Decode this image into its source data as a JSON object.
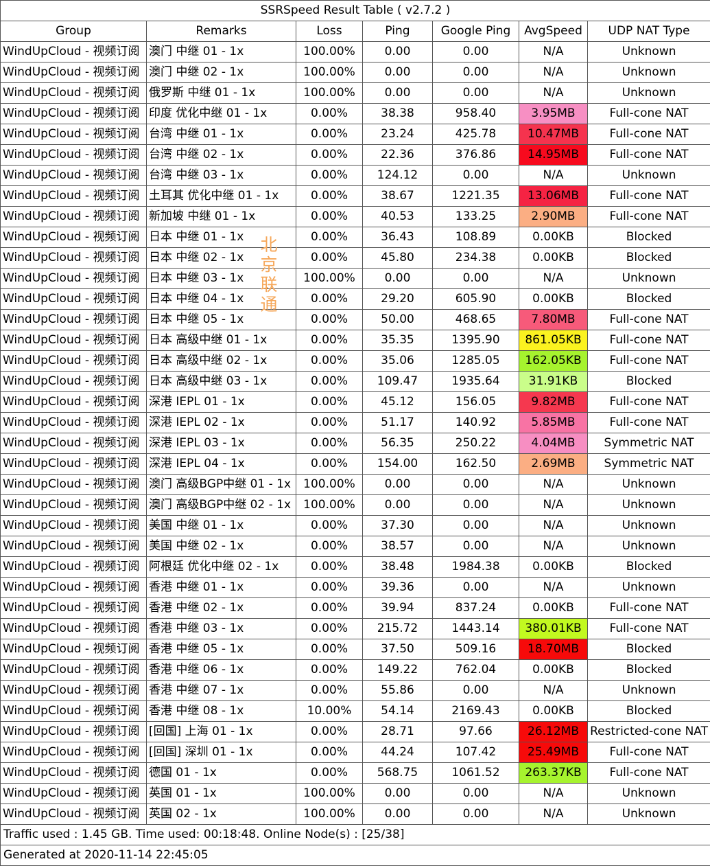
{
  "title": "SSRSpeed Result Table ( v2.7.2 )",
  "headers": [
    "Group",
    "Remarks",
    "Loss",
    "Ping",
    "Google Ping",
    "AvgSpeed",
    "UDP NAT Type"
  ],
  "rows": [
    {
      "group": "WindUpCloud - 视频订阅",
      "remarks": "澳门 中继 01 - 1x",
      "loss": "100.00%",
      "ping": "0.00",
      "gping": "0.00",
      "speed": "N/A",
      "color": "#ffffff",
      "nat": "Unknown"
    },
    {
      "group": "WindUpCloud - 视频订阅",
      "remarks": "澳门 中继 02 - 1x",
      "loss": "100.00%",
      "ping": "0.00",
      "gping": "0.00",
      "speed": "N/A",
      "color": "#ffffff",
      "nat": "Unknown"
    },
    {
      "group": "WindUpCloud - 视频订阅",
      "remarks": "俄罗斯 中继 01 - 1x",
      "loss": "100.00%",
      "ping": "0.00",
      "gping": "0.00",
      "speed": "N/A",
      "color": "#ffffff",
      "nat": "Unknown"
    },
    {
      "group": "WindUpCloud - 视频订阅",
      "remarks": "印度 优化中继 01 - 1x",
      "loss": "0.00%",
      "ping": "38.38",
      "gping": "958.40",
      "speed": "3.95MB",
      "color": "#f78fc3",
      "nat": "Full-cone NAT"
    },
    {
      "group": "WindUpCloud - 视频订阅",
      "remarks": "台湾 中继 01 - 1x",
      "loss": "0.00%",
      "ping": "23.24",
      "gping": "425.78",
      "speed": "10.47MB",
      "color": "#f5334e",
      "nat": "Full-cone NAT"
    },
    {
      "group": "WindUpCloud - 视频订阅",
      "remarks": "台湾 中继 02 - 1x",
      "loss": "0.00%",
      "ping": "22.36",
      "gping": "376.86",
      "speed": "14.95MB",
      "color": "#f70a1e",
      "nat": "Full-cone NAT"
    },
    {
      "group": "WindUpCloud - 视频订阅",
      "remarks": "台湾 中继 03 - 1x",
      "loss": "0.00%",
      "ping": "124.12",
      "gping": "0.00",
      "speed": "N/A",
      "color": "#ffffff",
      "nat": "Unknown"
    },
    {
      "group": "WindUpCloud - 视频订阅",
      "remarks": "土耳其 优化中继 01 - 1x",
      "loss": "0.00%",
      "ping": "38.67",
      "gping": "1221.35",
      "speed": "13.06MB",
      "color": "#f52343",
      "nat": "Full-cone NAT"
    },
    {
      "group": "WindUpCloud - 视频订阅",
      "remarks": "新加坡 中继 01 - 1x",
      "loss": "0.00%",
      "ping": "40.53",
      "gping": "133.25",
      "speed": "2.90MB",
      "color": "#fbae83",
      "nat": "Full-cone NAT"
    },
    {
      "group": "WindUpCloud - 视频订阅",
      "remarks": "日本 中继 01 - 1x",
      "loss": "0.00%",
      "ping": "36.43",
      "gping": "108.89",
      "speed": "0.00KB",
      "color": "#ffffff",
      "nat": "Blocked"
    },
    {
      "group": "WindUpCloud - 视频订阅",
      "remarks": "日本 中继 02 - 1x",
      "loss": "0.00%",
      "ping": "45.80",
      "gping": "234.38",
      "speed": "0.00KB",
      "color": "#ffffff",
      "nat": "Blocked"
    },
    {
      "group": "WindUpCloud - 视频订阅",
      "remarks": "日本 中继 03 - 1x",
      "loss": "100.00%",
      "ping": "0.00",
      "gping": "0.00",
      "speed": "N/A",
      "color": "#ffffff",
      "nat": "Unknown"
    },
    {
      "group": "WindUpCloud - 视频订阅",
      "remarks": "日本 中继 04 - 1x",
      "loss": "0.00%",
      "ping": "29.20",
      "gping": "605.90",
      "speed": "0.00KB",
      "color": "#ffffff",
      "nat": "Blocked"
    },
    {
      "group": "WindUpCloud - 视频订阅",
      "remarks": "日本 中继 05 - 1x",
      "loss": "0.00%",
      "ping": "50.00",
      "gping": "468.65",
      "speed": "7.80MB",
      "color": "#f75a7a",
      "nat": "Full-cone NAT"
    },
    {
      "group": "WindUpCloud - 视频订阅",
      "remarks": "日本 高级中继 01 - 1x",
      "loss": "0.00%",
      "ping": "35.35",
      "gping": "1395.90",
      "speed": "861.05KB",
      "color": "#fbf220",
      "nat": "Full-cone NAT"
    },
    {
      "group": "WindUpCloud - 视频订阅",
      "remarks": "日本 高级中继 02 - 1x",
      "loss": "0.00%",
      "ping": "35.06",
      "gping": "1285.05",
      "speed": "162.05KB",
      "color": "#a6f32e",
      "nat": "Full-cone NAT"
    },
    {
      "group": "WindUpCloud - 视频订阅",
      "remarks": "日本 高级中继 03 - 1x",
      "loss": "0.00%",
      "ping": "109.47",
      "gping": "1935.64",
      "speed": "31.91KB",
      "color": "#cafd8a",
      "nat": "Blocked"
    },
    {
      "group": "WindUpCloud - 视频订阅",
      "remarks": "深港 IEPL 01 - 1x",
      "loss": "0.00%",
      "ping": "45.12",
      "gping": "156.05",
      "speed": "9.82MB",
      "color": "#f5384f",
      "nat": "Full-cone NAT"
    },
    {
      "group": "WindUpCloud - 视频订阅",
      "remarks": "深港 IEPL 02 - 1x",
      "loss": "0.00%",
      "ping": "51.17",
      "gping": "140.92",
      "speed": "5.85MB",
      "color": "#f873a4",
      "nat": "Full-cone NAT"
    },
    {
      "group": "WindUpCloud - 视频订阅",
      "remarks": "深港 IEPL 03 - 1x",
      "loss": "0.00%",
      "ping": "56.35",
      "gping": "250.22",
      "speed": "4.04MB",
      "color": "#f78ec2",
      "nat": "Symmetric NAT"
    },
    {
      "group": "WindUpCloud - 视频订阅",
      "remarks": "深港 IEPL 04 - 1x",
      "loss": "0.00%",
      "ping": "154.00",
      "gping": "162.50",
      "speed": "2.69MB",
      "color": "#fbae83",
      "nat": "Symmetric NAT"
    },
    {
      "group": "WindUpCloud - 视频订阅",
      "remarks": "澳门 高级BGP中继 01 - 1x",
      "loss": "100.00%",
      "ping": "0.00",
      "gping": "0.00",
      "speed": "N/A",
      "color": "#ffffff",
      "nat": "Unknown"
    },
    {
      "group": "WindUpCloud - 视频订阅",
      "remarks": "澳门 高级BGP中继 02 - 1x",
      "loss": "100.00%",
      "ping": "0.00",
      "gping": "0.00",
      "speed": "N/A",
      "color": "#ffffff",
      "nat": "Unknown"
    },
    {
      "group": "WindUpCloud - 视频订阅",
      "remarks": "美国 中继 01 - 1x",
      "loss": "0.00%",
      "ping": "37.30",
      "gping": "0.00",
      "speed": "N/A",
      "color": "#ffffff",
      "nat": "Unknown"
    },
    {
      "group": "WindUpCloud - 视频订阅",
      "remarks": "美国 中继 02 - 1x",
      "loss": "0.00%",
      "ping": "38.57",
      "gping": "0.00",
      "speed": "N/A",
      "color": "#ffffff",
      "nat": "Unknown"
    },
    {
      "group": "WindUpCloud - 视频订阅",
      "remarks": "阿根廷 优化中继 02 - 1x",
      "loss": "0.00%",
      "ping": "38.48",
      "gping": "1984.38",
      "speed": "0.00KB",
      "color": "#ffffff",
      "nat": "Blocked"
    },
    {
      "group": "WindUpCloud - 视频订阅",
      "remarks": "香港 中继 01 - 1x",
      "loss": "0.00%",
      "ping": "39.36",
      "gping": "0.00",
      "speed": "N/A",
      "color": "#ffffff",
      "nat": "Unknown"
    },
    {
      "group": "WindUpCloud - 视频订阅",
      "remarks": "香港 中继 02 - 1x",
      "loss": "0.00%",
      "ping": "39.94",
      "gping": "837.24",
      "speed": "0.00KB",
      "color": "#ffffff",
      "nat": "Full-cone NAT"
    },
    {
      "group": "WindUpCloud - 视频订阅",
      "remarks": "香港 中继 03 - 1x",
      "loss": "0.00%",
      "ping": "215.72",
      "gping": "1443.14",
      "speed": "380.01KB",
      "color": "#c2f920",
      "nat": "Full-cone NAT"
    },
    {
      "group": "WindUpCloud - 视频订阅",
      "remarks": "香港 中继 05 - 1x",
      "loss": "0.00%",
      "ping": "37.50",
      "gping": "509.16",
      "speed": "18.70MB",
      "color": "#f70a0a",
      "nat": "Blocked"
    },
    {
      "group": "WindUpCloud - 视频订阅",
      "remarks": "香港 中继 06 - 1x",
      "loss": "0.00%",
      "ping": "149.22",
      "gping": "762.04",
      "speed": "0.00KB",
      "color": "#ffffff",
      "nat": "Blocked"
    },
    {
      "group": "WindUpCloud - 视频订阅",
      "remarks": "香港 中继 07 - 1x",
      "loss": "0.00%",
      "ping": "55.86",
      "gping": "0.00",
      "speed": "N/A",
      "color": "#ffffff",
      "nat": "Unknown"
    },
    {
      "group": "WindUpCloud - 视频订阅",
      "remarks": "香港 中继 08 - 1x",
      "loss": "10.00%",
      "ping": "54.14",
      "gping": "2169.43",
      "speed": "0.00KB",
      "color": "#ffffff",
      "nat": "Blocked"
    },
    {
      "group": "WindUpCloud - 视频订阅",
      "remarks": "[回国] 上海 01 - 1x",
      "loss": "0.00%",
      "ping": "28.71",
      "gping": "97.66",
      "speed": "26.12MB",
      "color": "#f70a0a",
      "nat": "Restricted-cone NAT"
    },
    {
      "group": "WindUpCloud - 视频订阅",
      "remarks": "[回国] 深圳 01 - 1x",
      "loss": "0.00%",
      "ping": "44.24",
      "gping": "107.42",
      "speed": "25.49MB",
      "color": "#f70a0a",
      "nat": "Full-cone NAT"
    },
    {
      "group": "WindUpCloud - 视频订阅",
      "remarks": "德国 01 - 1x",
      "loss": "0.00%",
      "ping": "568.75",
      "gping": "1061.52",
      "speed": "263.37KB",
      "color": "#a6f32e",
      "nat": "Full-cone NAT"
    },
    {
      "group": "WindUpCloud - 视频订阅",
      "remarks": "英国 01 - 1x",
      "loss": "100.00%",
      "ping": "0.00",
      "gping": "0.00",
      "speed": "N/A",
      "color": "#ffffff",
      "nat": "Unknown"
    },
    {
      "group": "WindUpCloud - 视频订阅",
      "remarks": "英国 02 - 1x",
      "loss": "100.00%",
      "ping": "0.00",
      "gping": "0.00",
      "speed": "N/A",
      "color": "#ffffff",
      "nat": "Unknown"
    }
  ],
  "footer": {
    "traffic": "Traffic used : 1.45 GB. Time used: 00:18:48. Online Node(s) : [25/38]",
    "generated": "Generated at 2020-11-14 22:45:05"
  },
  "watermark": [
    "北",
    "京",
    "联",
    "通"
  ]
}
